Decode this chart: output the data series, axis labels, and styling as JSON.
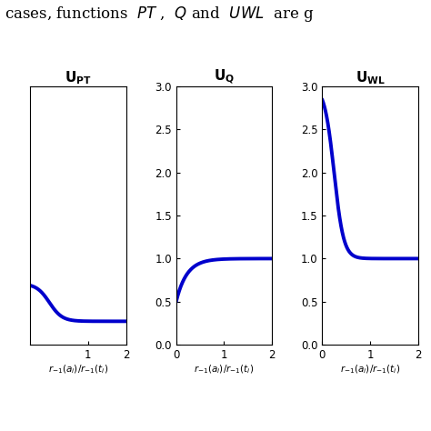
{
  "header_text": "cases, functions  PT ,  Q and  UWL  are g",
  "subplots": [
    {
      "title": "U_{PT}",
      "xlim": [
        -0.5,
        2.0
      ],
      "ylim": [
        0.8,
        3.0
      ],
      "xticks": [
        1,
        2
      ],
      "yticks": [],
      "func": "PT"
    },
    {
      "title": "U_{Q}",
      "xlim": [
        0,
        2.0
      ],
      "ylim": [
        0,
        3.0
      ],
      "xticks": [
        0,
        1,
        2
      ],
      "yticks": [
        0,
        0.5,
        1.0,
        1.5,
        2.0,
        2.5,
        3.0
      ],
      "func": "Q"
    },
    {
      "title": "U_{WL}",
      "xlim": [
        0,
        2.0
      ],
      "ylim": [
        0,
        3.0
      ],
      "xticks": [
        0,
        1,
        2
      ],
      "yticks": [
        0,
        0.5,
        1.0,
        1.5,
        2.0,
        2.5,
        3.0
      ],
      "func": "WL"
    }
  ],
  "line_color": "#0000CC",
  "line_width": 2.8,
  "bg_color": "#ffffff"
}
